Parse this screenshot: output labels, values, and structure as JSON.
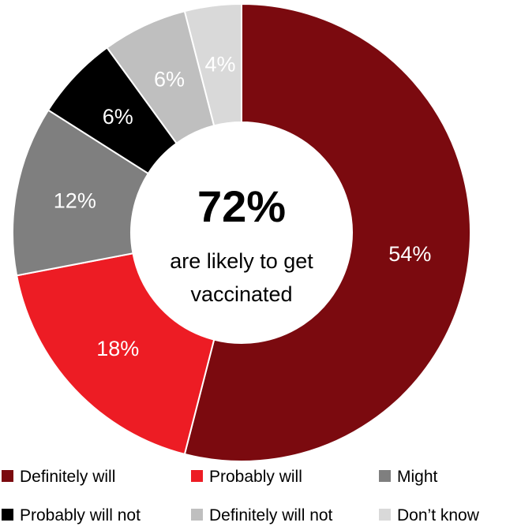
{
  "chart_data": {
    "type": "pie",
    "variant": "donut",
    "title": "",
    "center_label": {
      "value": "72%",
      "line1": "are likely to get",
      "line2": "vaccinated"
    },
    "slices": [
      {
        "name": "Definitely will",
        "value": 54,
        "label": "54%",
        "color": "#7b0a0f",
        "label_color": "#ffffff"
      },
      {
        "name": "Probably will",
        "value": 18,
        "label": "18%",
        "color": "#ed1c24",
        "label_color": "#ffffff"
      },
      {
        "name": "Might",
        "value": 12,
        "label": "12%",
        "color": "#7f7f7f",
        "label_color": "#ffffff"
      },
      {
        "name": "Probably will not",
        "value": 6,
        "label": "6%",
        "color": "#000000",
        "label_color": "#ffffff"
      },
      {
        "name": "Definitely will not",
        "value": 6,
        "label": "6%",
        "color": "#bfbfbf",
        "label_color": "#ffffff"
      },
      {
        "name": "Don’t know",
        "value": 4,
        "label": "4%",
        "color": "#d9d9d9",
        "label_color": "#ffffff"
      }
    ],
    "legend": {
      "placement": "bottom",
      "rows": [
        [
          "Definitely will",
          "Probably will",
          "Might"
        ],
        [
          "Probably will not",
          "Definitely will not",
          "Don’t know"
        ]
      ]
    }
  }
}
